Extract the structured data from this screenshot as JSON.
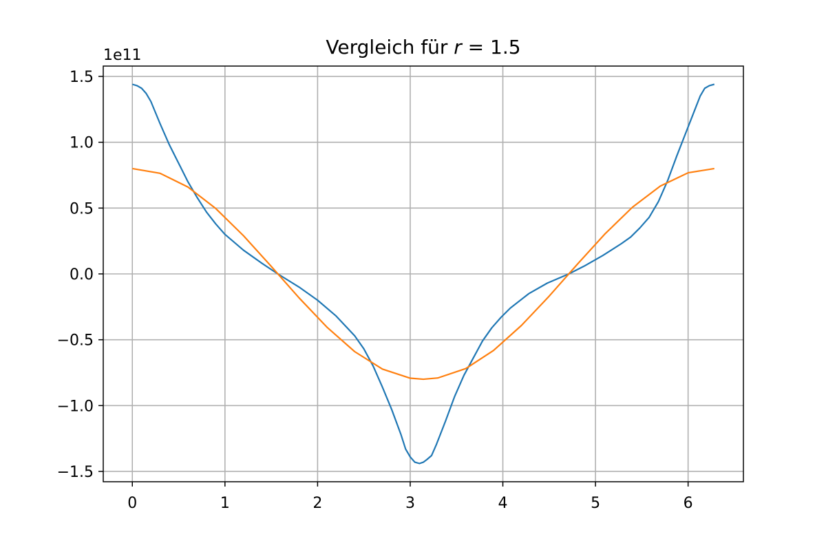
{
  "chart_data": {
    "type": "line",
    "title": "Vergleich für r = 1.5",
    "title_parts": {
      "prefix": "Vergleich für ",
      "variable": "r",
      "suffix": " = 1.5"
    },
    "xlabel": "",
    "ylabel": "",
    "y_offset_label": "1e11",
    "xlim": [
      -0.314,
      6.597
    ],
    "ylim": [
      -1.5785,
      1.5785
    ],
    "y_scale_factor": 100000000000.0,
    "grid": true,
    "legend": "none",
    "x_ticks": [
      0,
      1,
      2,
      3,
      4,
      5,
      6
    ],
    "x_tick_labels": [
      "0",
      "1",
      "2",
      "3",
      "4",
      "5",
      "6"
    ],
    "y_ticks": [
      -1.5,
      -1.0,
      -0.5,
      0.0,
      0.5,
      1.0,
      1.5
    ],
    "y_tick_labels": [
      "−1.5",
      "−1.0",
      "−0.5",
      "0.0",
      "0.5",
      "1.0",
      "1.5"
    ],
    "series": [
      {
        "color": "#1f77b4",
        "x": [
          0.0,
          0.05,
          0.1,
          0.15,
          0.2,
          0.3,
          0.4,
          0.5,
          0.6,
          0.7,
          0.8,
          0.9,
          1.0,
          1.2,
          1.4,
          1.5708,
          1.8,
          2.0,
          2.2,
          2.4,
          2.5,
          2.6,
          2.7,
          2.8,
          2.9,
          2.95,
          3.0,
          3.05,
          3.1,
          3.1416,
          3.18,
          3.23,
          3.28,
          3.33,
          3.38,
          3.48,
          3.58,
          3.68,
          3.78,
          3.88,
          3.98,
          4.08,
          4.28,
          4.48,
          4.7124,
          4.88,
          5.08,
          5.28,
          5.38,
          5.48,
          5.58,
          5.68,
          5.78,
          5.88,
          5.98,
          6.08,
          6.13,
          6.18,
          6.23,
          6.2832
        ],
        "y": [
          1.44,
          1.43,
          1.41,
          1.37,
          1.31,
          1.14,
          0.98,
          0.84,
          0.7,
          0.58,
          0.47,
          0.38,
          0.3,
          0.18,
          0.08,
          0.0,
          -0.1,
          -0.2,
          -0.32,
          -0.47,
          -0.57,
          -0.7,
          -0.86,
          -1.03,
          -1.22,
          -1.33,
          -1.39,
          -1.43,
          -1.44,
          -1.43,
          -1.41,
          -1.38,
          -1.3,
          -1.21,
          -1.12,
          -0.93,
          -0.77,
          -0.64,
          -0.51,
          -0.41,
          -0.33,
          -0.26,
          -0.15,
          -0.07,
          0.0,
          0.06,
          0.14,
          0.23,
          0.28,
          0.35,
          0.43,
          0.55,
          0.71,
          0.9,
          1.08,
          1.26,
          1.35,
          1.41,
          1.43,
          1.44
        ]
      },
      {
        "color": "#ff7f0e",
        "function": "0.8*cos(x)",
        "x": [
          0.0,
          0.3,
          0.6,
          0.9,
          1.2,
          1.5,
          1.8,
          2.1,
          2.4,
          2.7,
          3.0,
          3.1416,
          3.3,
          3.6,
          3.9,
          4.2,
          4.5,
          4.8,
          5.1,
          5.4,
          5.7,
          6.0,
          6.2832
        ],
        "y": [
          0.8,
          0.764,
          0.66,
          0.497,
          0.29,
          0.057,
          -0.182,
          -0.404,
          -0.59,
          -0.723,
          -0.792,
          -0.8,
          -0.79,
          -0.719,
          -0.581,
          -0.392,
          -0.169,
          0.07,
          0.302,
          0.507,
          0.667,
          0.768,
          0.8
        ]
      }
    ]
  }
}
